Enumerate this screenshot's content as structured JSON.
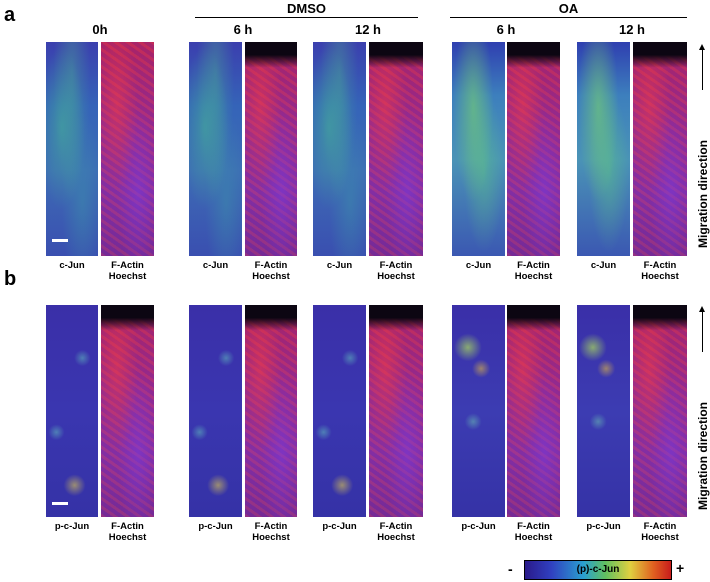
{
  "panels": {
    "a": {
      "letter": "a"
    },
    "b": {
      "letter": "b"
    }
  },
  "groups": {
    "dmso": "DMSO",
    "oa": "OA"
  },
  "columns": {
    "t0": "0h",
    "dmso_6": "6 h",
    "dmso_12": "12 h",
    "oa_6": "6 h",
    "oa_12": "12 h"
  },
  "captions": {
    "cjun": "c-Jun",
    "pcjun": "p-c-Jun",
    "factin": "F-Actin\nHoechst"
  },
  "side_label": "Migration direction",
  "colorbar": {
    "label": "(p)-c-Jun",
    "minus": "-",
    "plus": "+"
  }
}
